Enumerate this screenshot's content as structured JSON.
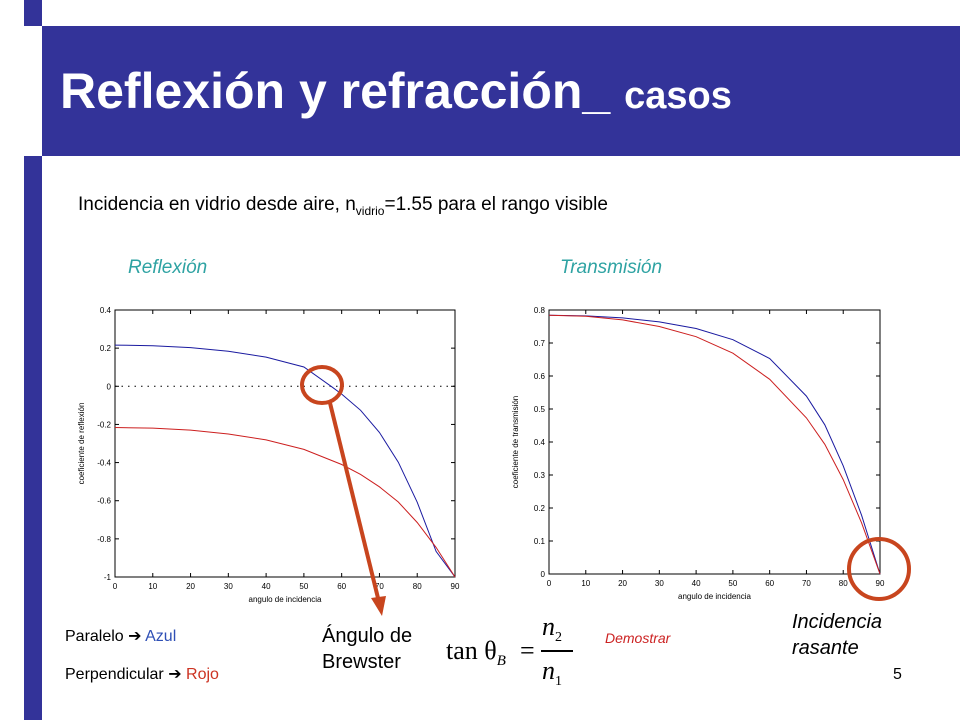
{
  "slide": {
    "title_main": "Reflexión y refracción_ ",
    "title_small": "casos",
    "subtitle_prefix": "Incidencia en vidrio desde aire, n",
    "subtitle_sub": "vidrio",
    "subtitle_suffix": "=1.55 para el rango visible",
    "label_reflection": "Reflexión",
    "label_transmission": "Transmisión",
    "legend_parallel_prefix": "Paralelo",
    "legend_parallel_color": "Azul",
    "legend_perp_prefix": "Perpendicular",
    "legend_perp_color": "Rojo",
    "brewster_line1": "Ángulo de",
    "brewster_line2": "Brewster",
    "grazing_line1": "Incidencia",
    "grazing_line2": "rasante",
    "demostrar": "Demostrar",
    "page_number": "5",
    "formula_lhs": "tan θ",
    "formula_lhs_sub": "B",
    "formula_num": "n",
    "formula_num_sub": "2",
    "formula_den": "n",
    "formula_den_sub": "1"
  },
  "colors": {
    "brand": "#333399",
    "label_teal": "#2fa3a3",
    "blue_curve": "#1a1aa0",
    "red_curve": "#cc1f1f",
    "annotation": "#c8451e"
  },
  "chart_data": [
    {
      "type": "line",
      "title": "",
      "xlabel": "angulo de incidencia",
      "ylabel": "coeficiente de reflexión",
      "xlim": [
        0,
        90
      ],
      "ylim": [
        -1,
        0.4
      ],
      "xticks": [
        0,
        10,
        20,
        30,
        40,
        50,
        60,
        70,
        80,
        90
      ],
      "yticks": [
        -1,
        -0.8,
        -0.6,
        -0.4,
        -0.2,
        0,
        0.2,
        0.4
      ],
      "ytick_labels": [
        "-1",
        "-0.8",
        "-0.6",
        "-0.4",
        "-0.2",
        "0",
        "0.2",
        "0.4"
      ],
      "zero_line": "dotted",
      "n_glass": 1.55,
      "series": [
        {
          "name": "Paralelo",
          "color": "#1a1aa0",
          "x": [
            0,
            10,
            20,
            30,
            40,
            50,
            57.2,
            60,
            65,
            70,
            75,
            80,
            85,
            90
          ],
          "y": [
            0.216,
            0.213,
            0.203,
            0.184,
            0.153,
            0.101,
            0,
            -0.041,
            -0.126,
            -0.242,
            -0.398,
            -0.608,
            -0.866,
            -1
          ]
        },
        {
          "name": "Perpendicular",
          "color": "#cc1f1f",
          "x": [
            0,
            10,
            20,
            30,
            40,
            50,
            60,
            65,
            70,
            75,
            80,
            85,
            90
          ],
          "y": [
            -0.216,
            -0.219,
            -0.23,
            -0.25,
            -0.281,
            -0.331,
            -0.41,
            -0.462,
            -0.527,
            -0.607,
            -0.714,
            -0.845,
            -1
          ]
        }
      ]
    },
    {
      "type": "line",
      "title": "",
      "xlabel": "angulo de incidencia",
      "ylabel": "coeficiente de transmisión",
      "xlim": [
        0,
        90
      ],
      "ylim": [
        0,
        0.8
      ],
      "xticks": [
        0,
        10,
        20,
        30,
        40,
        50,
        60,
        70,
        80,
        90
      ],
      "yticks": [
        0,
        0.1,
        0.2,
        0.3,
        0.4,
        0.5,
        0.6,
        0.7,
        0.8
      ],
      "ytick_labels": [
        "0",
        "0.1",
        "0.2",
        "0.3",
        "0.4",
        "0.5",
        "0.6",
        "0.7",
        "0.8"
      ],
      "series": [
        {
          "name": "Paralelo",
          "color": "#1a1aa0",
          "x": [
            0,
            10,
            20,
            30,
            40,
            50,
            60,
            70,
            75,
            80,
            85,
            90
          ],
          "y": [
            0.784,
            0.782,
            0.776,
            0.764,
            0.744,
            0.71,
            0.653,
            0.539,
            0.452,
            0.328,
            0.178,
            0
          ]
        },
        {
          "name": "Perpendicular",
          "color": "#cc1f1f",
          "x": [
            0,
            10,
            20,
            30,
            40,
            50,
            60,
            70,
            75,
            80,
            85,
            90
          ],
          "y": [
            0.784,
            0.781,
            0.77,
            0.75,
            0.719,
            0.669,
            0.59,
            0.473,
            0.393,
            0.286,
            0.155,
            0
          ]
        }
      ]
    }
  ]
}
